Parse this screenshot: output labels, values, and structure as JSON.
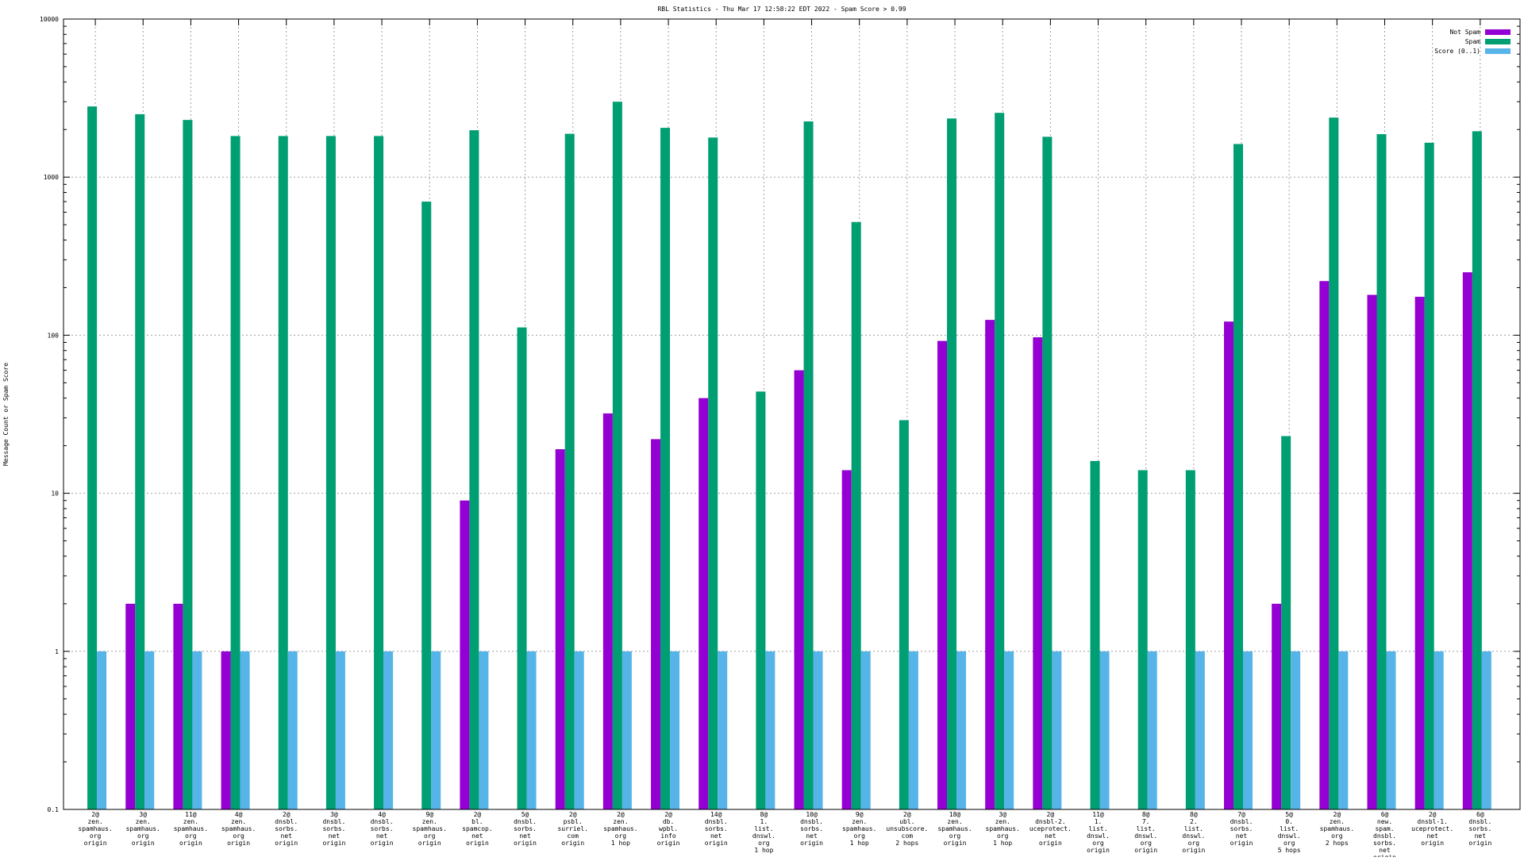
{
  "chart_data": {
    "type": "bar",
    "title": "RBL Statistics - Thu Mar 17 12:58:22 EDT 2022 - Spam Score > 0.99",
    "xlabel": "",
    "ylabel": "Message Count or Spam Score",
    "yscale": "log",
    "ylim": [
      0.1,
      10000
    ],
    "yticks": [
      "0.1",
      "1",
      "10",
      "100",
      "1000",
      "10000"
    ],
    "grid": true,
    "legend_position": "top-right",
    "categories": [
      [
        "2@",
        "zen.",
        "spamhaus.",
        "org",
        "origin"
      ],
      [
        "3@",
        "zen.",
        "spamhaus.",
        "org",
        "origin"
      ],
      [
        "11@",
        "zen.",
        "spamhaus.",
        "org",
        "origin"
      ],
      [
        "4@",
        "zen.",
        "spamhaus.",
        "org",
        "origin"
      ],
      [
        "2@",
        "dnsbl.",
        "sorbs.",
        "net",
        "origin"
      ],
      [
        "3@",
        "dnsbl.",
        "sorbs.",
        "net",
        "origin"
      ],
      [
        "4@",
        "dnsbl.",
        "sorbs.",
        "net",
        "origin"
      ],
      [
        "9@",
        "zen.",
        "spamhaus.",
        "org",
        "origin"
      ],
      [
        "2@",
        "bl.",
        "spamcop.",
        "net",
        "origin"
      ],
      [
        "5@",
        "dnsbl.",
        "sorbs.",
        "net",
        "origin"
      ],
      [
        "2@",
        "psbl.",
        "surriel.",
        "com",
        "origin"
      ],
      [
        "2@",
        "zen.",
        "spamhaus.",
        "org",
        "1 hop"
      ],
      [
        "2@",
        "db.",
        "wpbl.",
        "info",
        "origin"
      ],
      [
        "14@",
        "dnsbl.",
        "sorbs.",
        "net",
        "origin"
      ],
      [
        "8@",
        "1.",
        "list.",
        "dnswl.",
        "org",
        "1 hop"
      ],
      [
        "10@",
        "dnsbl.",
        "sorbs.",
        "net",
        "origin"
      ],
      [
        "9@",
        "zen.",
        "spamhaus.",
        "org",
        "1 hop"
      ],
      [
        "2@",
        "ubl.",
        "unsubscore.",
        "com",
        "2 hops"
      ],
      [
        "18@",
        "zen.",
        "spamhaus.",
        "org",
        "origin"
      ],
      [
        "3@",
        "zen.",
        "spamhaus.",
        "org",
        "1 hop"
      ],
      [
        "2@",
        "dnsbl-2.",
        "uceprotect.",
        "net",
        "origin"
      ],
      [
        "11@",
        "1.",
        "list.",
        "dnswl.",
        "org",
        "origin"
      ],
      [
        "8@",
        "7.",
        "list.",
        "dnswl.",
        "org",
        "origin"
      ],
      [
        "8@",
        "2.",
        "list.",
        "dnswl.",
        "org",
        "origin"
      ],
      [
        "7@",
        "dnsbl.",
        "sorbs.",
        "net",
        "origin"
      ],
      [
        "5@",
        "0.",
        "list.",
        "dnswl.",
        "org",
        "5 hops"
      ],
      [
        "2@",
        "zen.",
        "spamhaus.",
        "org",
        "2 hops"
      ],
      [
        "6@",
        "new.",
        "spam.",
        "dnsbl.",
        "sorbs.",
        "net",
        "origin"
      ],
      [
        "2@",
        "dnsbl-1.",
        "uceprotect.",
        "net",
        "origin"
      ],
      [
        "6@",
        "dnsbl.",
        "sorbs.",
        "net",
        "origin"
      ]
    ],
    "series": [
      {
        "name": "Not Spam",
        "color": "#9400d3",
        "values": [
          null,
          2,
          2,
          1,
          null,
          null,
          null,
          null,
          9,
          null,
          19,
          32,
          22,
          40,
          null,
          60,
          14,
          null,
          92,
          125,
          97,
          null,
          null,
          null,
          122,
          2,
          220,
          180,
          175,
          250
        ]
      },
      {
        "name": "Spam",
        "color": "#009e73",
        "values": [
          2800,
          2500,
          2300,
          1820,
          1820,
          1820,
          1820,
          700,
          1980,
          112,
          1880,
          3000,
          2050,
          1780,
          44,
          2250,
          520,
          29,
          2350,
          2550,
          1800,
          16,
          14,
          14,
          1620,
          23,
          2380,
          1870,
          1650,
          1950
        ]
      },
      {
        "name": "Score (0..1)",
        "color": "#56b4e9",
        "values": [
          1,
          1,
          1,
          1,
          1,
          1,
          1,
          1,
          1,
          1,
          1,
          1,
          1,
          1,
          1,
          1,
          1,
          1,
          1,
          1,
          1,
          1,
          1,
          1,
          1,
          1,
          1,
          1,
          1,
          1
        ]
      }
    ]
  }
}
